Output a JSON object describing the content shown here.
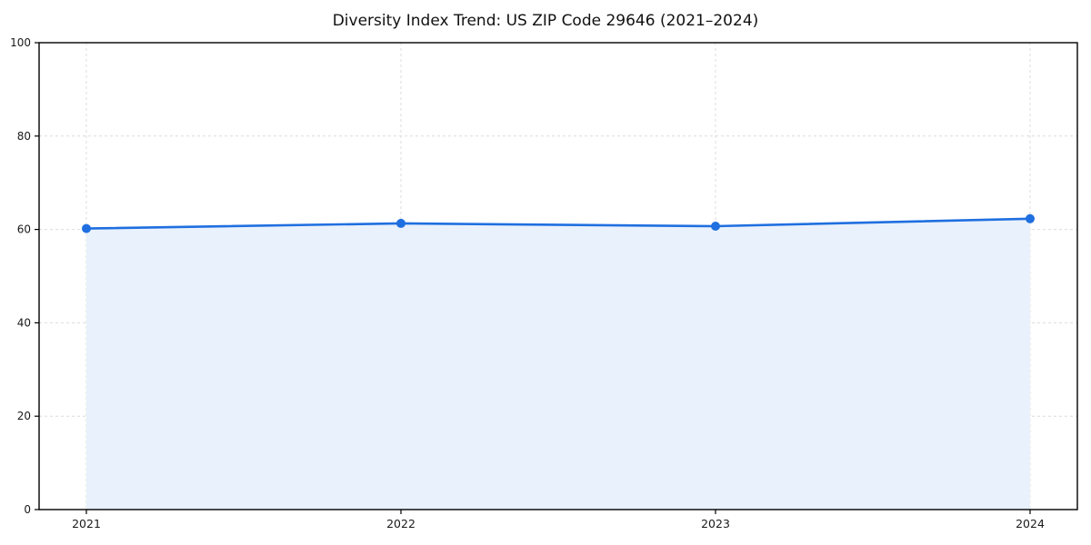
{
  "chart_data": {
    "type": "area",
    "title": "Diversity Index Trend: US ZIP Code 29646 (2021–2024)",
    "categories": [
      "2021",
      "2022",
      "2023",
      "2024"
    ],
    "series": [
      {
        "name": "Diversity Index",
        "values": [
          60.2,
          61.3,
          60.7,
          62.3
        ]
      }
    ],
    "xlabel": "",
    "ylabel": "",
    "ylim": [
      0,
      100
    ],
    "yticks": [
      0,
      20,
      40,
      60,
      80,
      100
    ],
    "grid": "dashed-both-axes",
    "legend": "none",
    "colors": {
      "line": "#1f6fe0",
      "fill": "#e9f1fc",
      "grid": "#dcdcdc",
      "spine": "#000000",
      "text": "#111111",
      "background": "#ffffff"
    }
  }
}
